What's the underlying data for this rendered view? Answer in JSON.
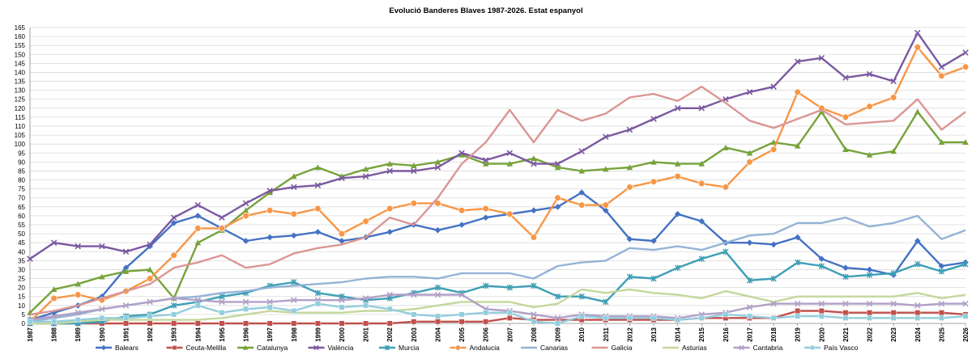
{
  "chart_data": {
    "type": "line",
    "title": "Evolució Banderes Blaves 1987-2026. Estat espanyol",
    "xlabel": "",
    "ylabel": "",
    "ylim": [
      0,
      165
    ],
    "ytick_step": 5,
    "grid": true,
    "legend_position": "bottom",
    "categories": [
      "1987",
      "1988",
      "1989",
      "1990",
      "1991",
      "1992",
      "1993",
      "1994",
      "1995",
      "1996",
      "1997",
      "1998",
      "1999",
      "2000",
      "2001",
      "2002",
      "2003",
      "2004",
      "2005",
      "2006",
      "2007",
      "2008",
      "2009",
      "2010",
      "2011",
      "2012",
      "2013",
      "2014",
      "2015",
      "2016",
      "2017",
      "2018",
      "2019",
      "2020",
      "2021",
      "2022",
      "2023",
      "2024",
      "2025",
      "2026"
    ],
    "series": [
      {
        "name": "Balears",
        "color": "#4472c4",
        "marker": "diamond",
        "values": [
          2,
          6,
          10,
          15,
          31,
          43,
          56,
          60,
          53,
          46,
          48,
          49,
          51,
          46,
          48,
          51,
          55,
          52,
          55,
          59,
          61,
          63,
          65,
          73,
          63,
          47,
          46,
          61,
          57,
          45,
          45,
          44,
          48,
          36,
          31,
          30,
          27,
          46,
          32,
          34
        ]
      },
      {
        "name": "Ceuta-Melilla",
        "color": "#c0504d",
        "marker": "square",
        "values": [
          0,
          0,
          0,
          0,
          0,
          0,
          0,
          0,
          0,
          0,
          0,
          0,
          0,
          0,
          0,
          0,
          1,
          1,
          1,
          1,
          3,
          2,
          2,
          2,
          2,
          2,
          2,
          2,
          3,
          3,
          3,
          3,
          7,
          7,
          6,
          6,
          6,
          6,
          6,
          5
        ]
      },
      {
        "name": "Catalunya",
        "color": "#77a33a",
        "marker": "triangle",
        "values": [
          6,
          19,
          22,
          26,
          29,
          30,
          14,
          45,
          52,
          63,
          73,
          82,
          87,
          82,
          86,
          89,
          88,
          90,
          94,
          89,
          89,
          92,
          87,
          85,
          86,
          87,
          90,
          89,
          89,
          98,
          95,
          101,
          99,
          118,
          97,
          94,
          96,
          118,
          101,
          101
        ]
      },
      {
        "name": "València",
        "color": "#7b59a0",
        "marker": "x",
        "values": [
          36,
          45,
          43,
          43,
          40,
          44,
          59,
          66,
          59,
          67,
          74,
          76,
          77,
          81,
          82,
          85,
          85,
          87,
          95,
          91,
          95,
          89,
          89,
          96,
          104,
          108,
          114,
          120,
          120,
          125,
          129,
          132,
          146,
          148,
          137,
          139,
          135,
          162,
          143,
          151
        ]
      },
      {
        "name": "Murcia",
        "color": "#3d9fb6",
        "marker": "star",
        "values": [
          0,
          0,
          0,
          1,
          4,
          5,
          10,
          12,
          15,
          17,
          21,
          23,
          17,
          15,
          13,
          14,
          17,
          20,
          17,
          21,
          20,
          21,
          15,
          15,
          12,
          26,
          25,
          31,
          36,
          40,
          24,
          25,
          34,
          32,
          26,
          27,
          28,
          33,
          29,
          33
        ]
      },
      {
        "name": "Andalucia",
        "color": "#f79646",
        "marker": "circle",
        "values": [
          1,
          14,
          16,
          13,
          18,
          25,
          38,
          53,
          53,
          60,
          63,
          61,
          64,
          50,
          57,
          64,
          67,
          67,
          63,
          64,
          61,
          48,
          70,
          66,
          66,
          76,
          79,
          82,
          78,
          76,
          90,
          97,
          129,
          120,
          115,
          121,
          126,
          154,
          138,
          143
        ]
      },
      {
        "name": "Canarias",
        "color": "#95b3d7",
        "marker": "none",
        "values": [
          1,
          3,
          5,
          8,
          10,
          12,
          14,
          15,
          17,
          18,
          20,
          21,
          22,
          23,
          25,
          26,
          26,
          25,
          28,
          28,
          28,
          25,
          32,
          34,
          35,
          42,
          41,
          43,
          41,
          45,
          49,
          50,
          56,
          56,
          59,
          54,
          56,
          60,
          47,
          52
        ]
      },
      {
        "name": "Galicia",
        "color": "#da9694",
        "marker": "none",
        "values": [
          5,
          7,
          10,
          14,
          18,
          22,
          31,
          34,
          38,
          31,
          33,
          39,
          42,
          44,
          48,
          59,
          55,
          70,
          89,
          101,
          119,
          101,
          119,
          113,
          117,
          126,
          128,
          124,
          132,
          123,
          113,
          109,
          114,
          119,
          111,
          112,
          113,
          125,
          108,
          118
        ]
      },
      {
        "name": "Asturias",
        "color": "#c4d79b",
        "marker": "none",
        "values": [
          0,
          0,
          1,
          2,
          2,
          2,
          2,
          2,
          3,
          5,
          7,
          6,
          6,
          6,
          7,
          7,
          8,
          10,
          12,
          12,
          12,
          9,
          11,
          19,
          17,
          19,
          17,
          16,
          14,
          18,
          15,
          12,
          15,
          15,
          15,
          15,
          15,
          17,
          14,
          16
        ]
      },
      {
        "name": "Cantabria",
        "color": "#b1a0c7",
        "marker": "x",
        "values": [
          2,
          4,
          6,
          8,
          10,
          12,
          14,
          13,
          12,
          12,
          12,
          13,
          13,
          13,
          14,
          16,
          16,
          16,
          16,
          8,
          7,
          5,
          3,
          5,
          4,
          4,
          4,
          3,
          5,
          6,
          9,
          11,
          11,
          11,
          11,
          11,
          11,
          10,
          11,
          11
        ]
      },
      {
        "name": "País Vasco",
        "color": "#93cddd",
        "marker": "square",
        "values": [
          1,
          1,
          2,
          3,
          3,
          4,
          5,
          10,
          6,
          8,
          9,
          7,
          11,
          9,
          10,
          8,
          5,
          4,
          5,
          6,
          6,
          1,
          0,
          4,
          3,
          3,
          3,
          2,
          3,
          5,
          4,
          3,
          4,
          4,
          3,
          3,
          3,
          3,
          3,
          4
        ]
      }
    ]
  }
}
